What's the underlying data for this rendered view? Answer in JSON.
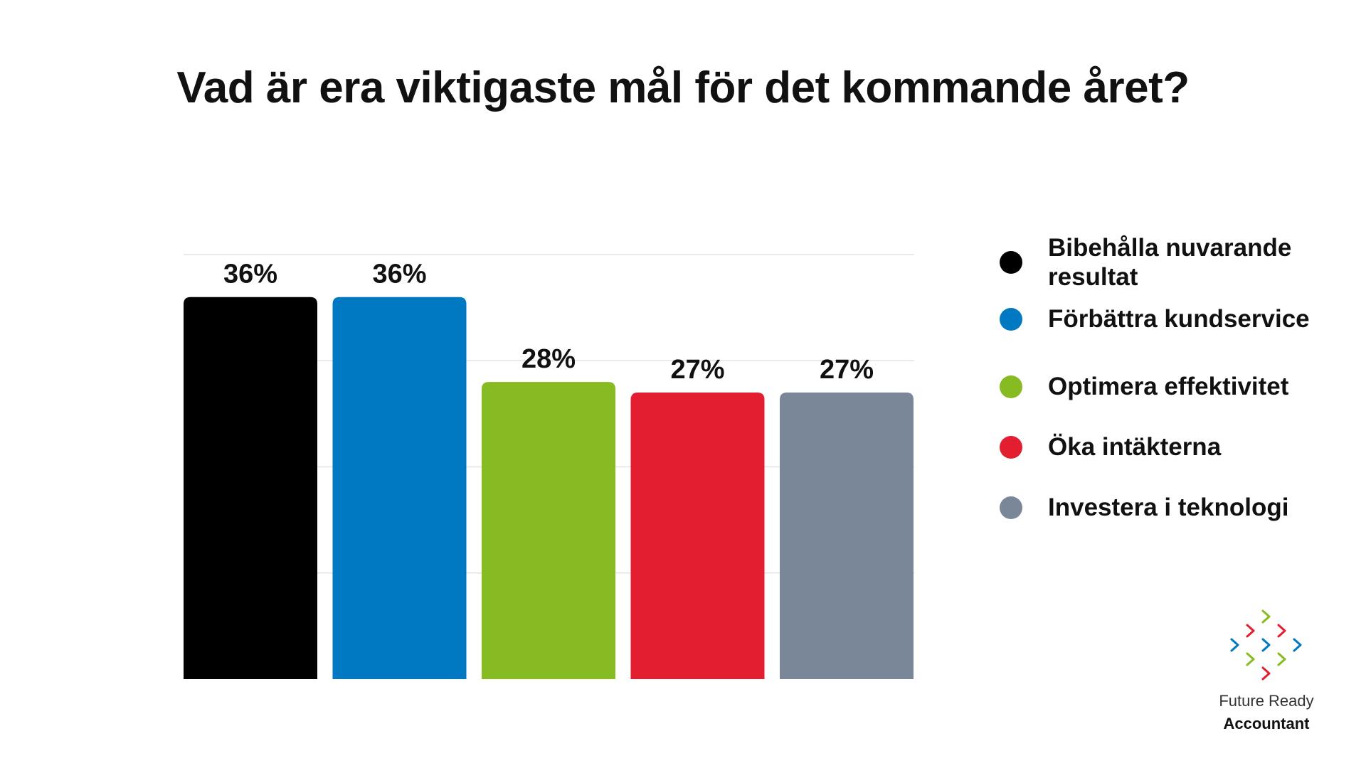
{
  "title": "Vad är era viktigaste mål för det kommande året?",
  "chart_data": {
    "type": "bar",
    "categories": [
      "Bibehålla nuvarande resultat",
      "Förbättra kundservice",
      "Optimera effektivitet",
      "Öka intäkterna",
      "Investera i teknologi"
    ],
    "values": [
      36,
      36,
      28,
      27,
      27
    ],
    "value_labels": [
      "36%",
      "36%",
      "28%",
      "27%",
      "27%"
    ],
    "colors": [
      "#000000",
      "#0079c2",
      "#86bc21",
      "#e31e30",
      "#7a8799"
    ],
    "ylim": [
      0,
      40
    ],
    "grid": true,
    "legend_position": "right"
  },
  "legend": {
    "items": [
      {
        "label": "Bibehålla nuvarande resultat",
        "color": "#000000"
      },
      {
        "label": "Förbättra kundservice",
        "color": "#0079c2"
      },
      {
        "label": "Optimera effektivitet",
        "color": "#86bc21"
      },
      {
        "label": "Öka intäkterna",
        "color": "#e31e30"
      },
      {
        "label": "Investera i teknologi",
        "color": "#7a8799"
      }
    ]
  },
  "logo": {
    "line1": "Future Ready",
    "line2": "Accountant",
    "icon": "chevron-arrows-logo-icon",
    "colors": [
      "#86bc21",
      "#e31e30",
      "#0079c2"
    ]
  }
}
